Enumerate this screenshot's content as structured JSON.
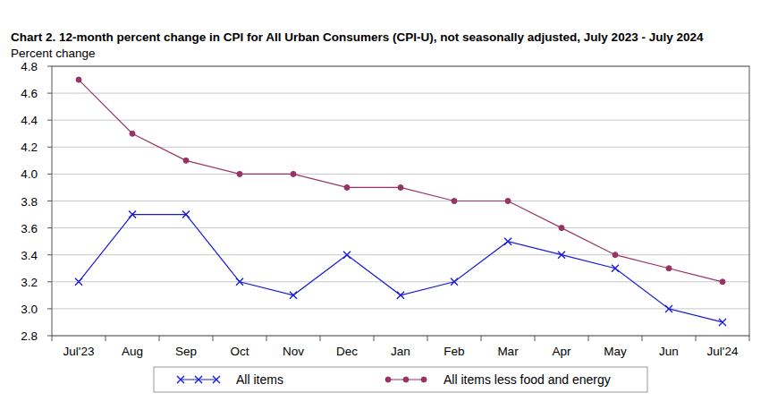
{
  "chart_data": {
    "type": "line",
    "title": "Chart 2. 12-month percent change in CPI for All Urban Consumers (CPI-U), not seasonally adjusted, July 2023 - July 2024",
    "y_label": "Percent change",
    "categories": [
      "Jul'23",
      "Aug",
      "Sep",
      "Oct",
      "Nov",
      "Dec",
      "Jan",
      "Feb",
      "Mar",
      "Apr",
      "May",
      "Jun",
      "Jul'24"
    ],
    "series": [
      {
        "name": "All items",
        "color": "#1a1ad6",
        "marker": "x",
        "line_style": "solid",
        "values": [
          3.2,
          3.7,
          3.7,
          3.2,
          3.1,
          3.4,
          3.1,
          3.2,
          3.5,
          3.4,
          3.3,
          3.0,
          2.9
        ]
      },
      {
        "name": "All items less food and energy",
        "color": "#993366",
        "marker": "circle",
        "line_style": "solid",
        "values": [
          4.7,
          4.3,
          4.1,
          4.0,
          4.0,
          3.9,
          3.9,
          3.8,
          3.8,
          3.6,
          3.4,
          3.3,
          3.2
        ]
      }
    ],
    "ylim": [
      2.8,
      4.8
    ],
    "yticks": [
      2.8,
      {
        "value": 3,
        "label": "3.0"
      },
      3.2,
      3.4,
      3.6,
      3.8,
      {
        "value": 4,
        "label": "4.0"
      },
      4.2,
      4.4,
      4.6,
      4.8
    ],
    "grid": true,
    "legend": "bottom"
  }
}
